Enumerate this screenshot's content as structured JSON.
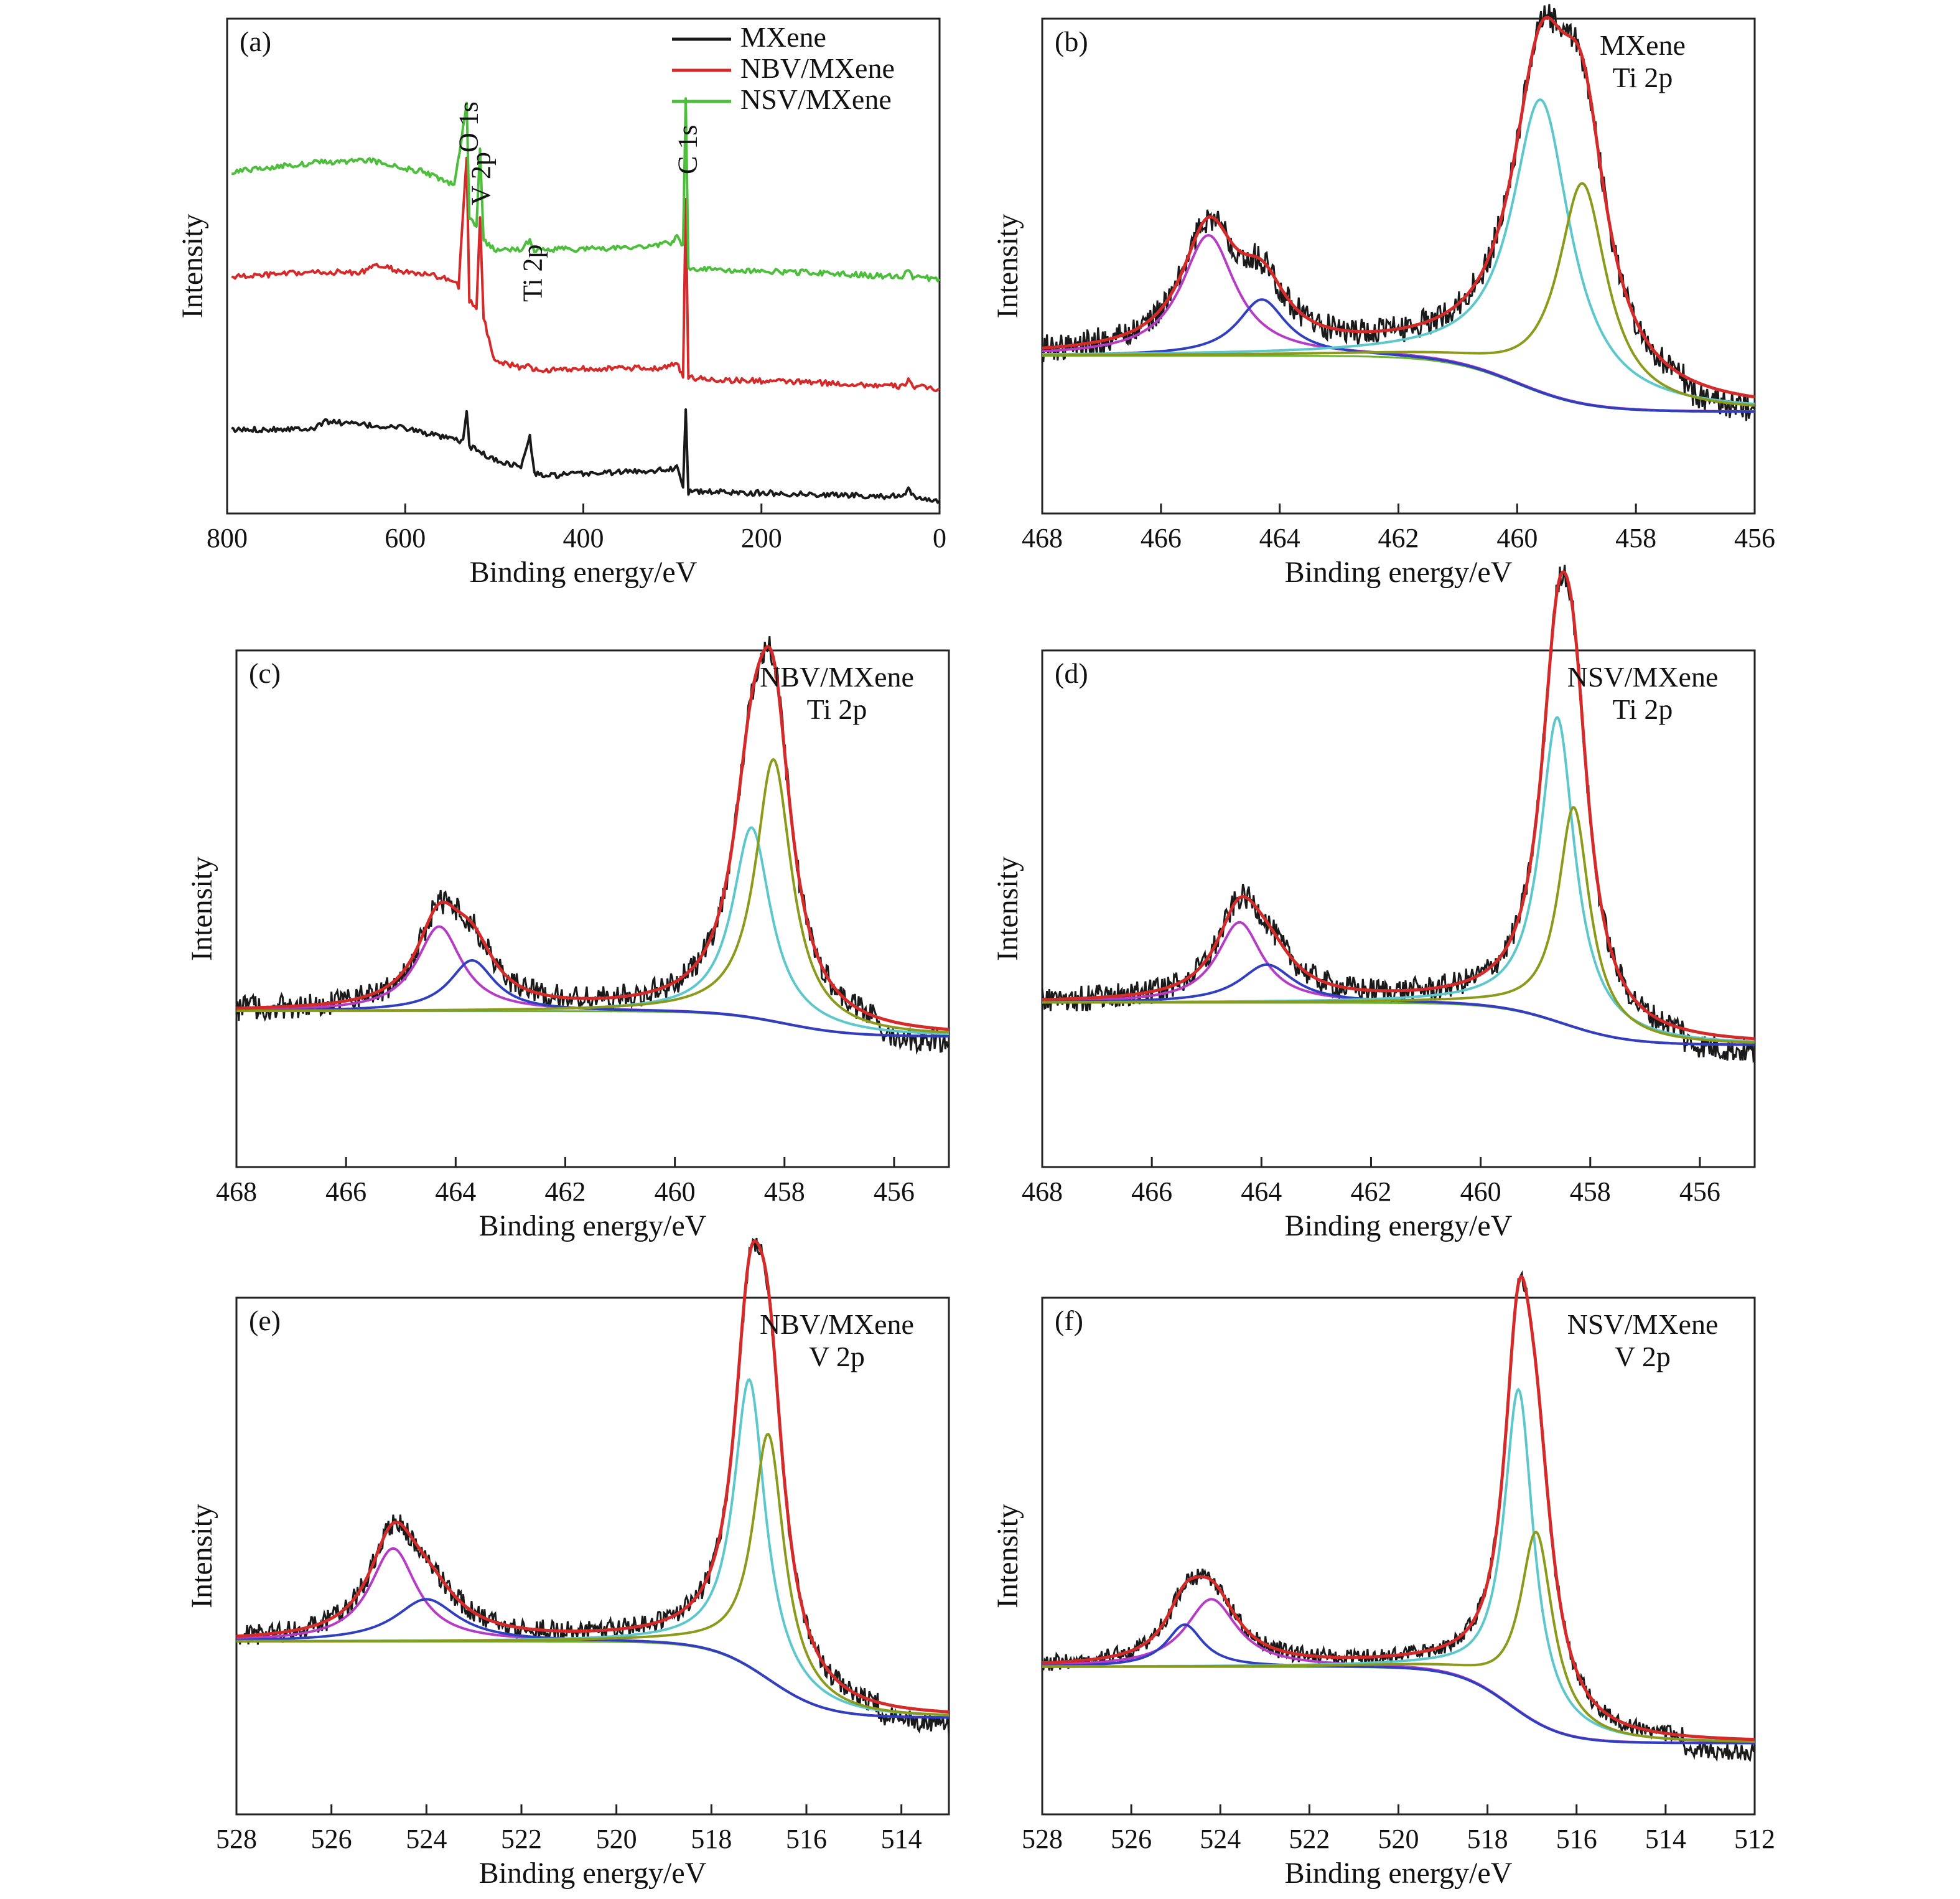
{
  "colors": {
    "mxene": "#1a1a1a",
    "nbv": "#d42a2a",
    "nsv": "#4cbe3c",
    "envelope": "#d42a2a",
    "cyan": "#5cc8cc",
    "olive": "#8b9a1a",
    "blue": "#2f3fc0",
    "magenta": "#b63cc6",
    "baseline": "#6bb230"
  },
  "chart_data": [
    {
      "id": "a",
      "type": "line",
      "panel_label": "(a)",
      "xlabel": "Binding energy/eV",
      "ylabel": "Intensity",
      "xlim": [
        800,
        0
      ],
      "xticks": [
        800,
        600,
        400,
        200,
        0
      ],
      "legend": {
        "placement": "top-right",
        "entries": [
          "MXene",
          "NBV/MXene",
          "NSV/MXene"
        ]
      },
      "peak_labels": [
        {
          "text": "O 1s",
          "x": 530
        },
        {
          "text": "V 2p",
          "x": 516
        },
        {
          "text": "Ti 2p",
          "x": 458
        },
        {
          "text": "C 1s",
          "x": 284
        }
      ],
      "series": [
        {
          "name": "MXene",
          "color_key": "mxene",
          "points": [
            [
              795,
              0.155
            ],
            [
              700,
              0.16
            ],
            [
              690,
              0.175
            ],
            [
              640,
              0.165
            ],
            [
              600,
              0.16
            ],
            [
              560,
              0.14
            ],
            [
              535,
              0.13
            ],
            [
              531,
              0.2
            ],
            [
              528,
              0.12
            ],
            [
              500,
              0.09
            ],
            [
              470,
              0.075
            ],
            [
              460,
              0.14
            ],
            [
              455,
              0.06
            ],
            [
              440,
              0.055
            ],
            [
              400,
              0.06
            ],
            [
              340,
              0.065
            ],
            [
              300,
              0.07
            ],
            [
              295,
              0.08
            ],
            [
              288,
              0.03
            ],
            [
              285,
              0.2
            ],
            [
              282,
              0.02
            ],
            [
              250,
              0.02
            ],
            [
              150,
              0.015
            ],
            [
              40,
              0.01
            ],
            [
              35,
              0.025
            ],
            [
              30,
              0.01
            ],
            [
              0,
              0.0
            ]
          ]
        },
        {
          "name": "NBV/MXene",
          "color_key": "nbv",
          "points": [
            [
              795,
              0.49
            ],
            [
              700,
              0.5
            ],
            [
              650,
              0.5
            ],
            [
              630,
              0.515
            ],
            [
              600,
              0.5
            ],
            [
              560,
              0.49
            ],
            [
              540,
              0.47
            ],
            [
              531,
              0.75
            ],
            [
              528,
              0.44
            ],
            [
              520,
              0.42
            ],
            [
              516,
              0.62
            ],
            [
              512,
              0.4
            ],
            [
              500,
              0.31
            ],
            [
              470,
              0.29
            ],
            [
              460,
              0.3
            ],
            [
              455,
              0.285
            ],
            [
              400,
              0.29
            ],
            [
              320,
              0.29
            ],
            [
              295,
              0.3
            ],
            [
              288,
              0.27
            ],
            [
              285,
              0.66
            ],
            [
              282,
              0.27
            ],
            [
              250,
              0.265
            ],
            [
              150,
              0.26
            ],
            [
              40,
              0.25
            ],
            [
              35,
              0.27
            ],
            [
              30,
              0.25
            ],
            [
              0,
              0.245
            ]
          ]
        },
        {
          "name": "NSV/MXene",
          "color_key": "nsv",
          "points": [
            [
              795,
              0.72
            ],
            [
              700,
              0.74
            ],
            [
              640,
              0.745
            ],
            [
              620,
              0.735
            ],
            [
              580,
              0.72
            ],
            [
              545,
              0.69
            ],
            [
              531,
              0.87
            ],
            [
              528,
              0.62
            ],
            [
              520,
              0.6
            ],
            [
              516,
              0.77
            ],
            [
              512,
              0.57
            ],
            [
              500,
              0.55
            ],
            [
              470,
              0.55
            ],
            [
              460,
              0.57
            ],
            [
              455,
              0.55
            ],
            [
              420,
              0.55
            ],
            [
              340,
              0.555
            ],
            [
              300,
              0.565
            ],
            [
              295,
              0.58
            ],
            [
              288,
              0.56
            ],
            [
              285,
              0.88
            ],
            [
              282,
              0.51
            ],
            [
              250,
              0.505
            ],
            [
              150,
              0.5
            ],
            [
              40,
              0.49
            ],
            [
              35,
              0.51
            ],
            [
              30,
              0.49
            ],
            [
              0,
              0.485
            ]
          ]
        }
      ]
    },
    {
      "id": "b",
      "type": "line",
      "panel_label": "(b)",
      "title_lines": [
        "MXene",
        "Ti 2p"
      ],
      "xlabel": "Binding energy/eV",
      "ylabel": "Intensity",
      "xlim": [
        468,
        456
      ],
      "xticks": [
        468,
        466,
        464,
        462,
        460,
        458,
        456
      ],
      "baseline": {
        "left": 0.3,
        "right": 0.16,
        "step_center": 460.0
      },
      "right_tail": 0.2,
      "noise": 0.035,
      "peaks": [
        {
          "color_key": "magenta",
          "center": 465.2,
          "height": 0.3,
          "width": 0.55
        },
        {
          "color_key": "blue",
          "center": 464.3,
          "height": 0.14,
          "width": 0.5
        },
        {
          "color_key": "cyan",
          "center": 459.6,
          "height": 0.73,
          "width": 0.6
        },
        {
          "color_key": "olive",
          "center": 458.9,
          "height": 0.55,
          "width": 0.5
        }
      ]
    },
    {
      "id": "c",
      "type": "line",
      "panel_label": "(c)",
      "title_lines": [
        "NBV/MXene",
        "Ti 2p"
      ],
      "xlabel": "Binding energy/eV",
      "ylabel": "Intensity",
      "xlim": [
        468,
        455
      ],
      "xticks": [
        468,
        466,
        464,
        462,
        460,
        458,
        456
      ],
      "baseline": {
        "left": 0.28,
        "right": 0.22,
        "step_center": 458.0
      },
      "right_tail": 0.2,
      "noise": 0.03,
      "peaks": [
        {
          "color_key": "magenta",
          "center": 464.3,
          "height": 0.2,
          "width": 0.5
        },
        {
          "color_key": "blue",
          "center": 463.7,
          "height": 0.12,
          "width": 0.5
        },
        {
          "color_key": "cyan",
          "center": 458.6,
          "height": 0.45,
          "width": 0.42
        },
        {
          "color_key": "olive",
          "center": 458.2,
          "height": 0.62,
          "width": 0.4
        }
      ]
    },
    {
      "id": "d",
      "type": "line",
      "panel_label": "(d)",
      "title_lines": [
        "NSV/MXene",
        "Ti 2p"
      ],
      "xlabel": "Binding energy/eV",
      "ylabel": "Intensity",
      "xlim": [
        468,
        455
      ],
      "xticks": [
        468,
        466,
        464,
        462,
        460,
        458,
        456
      ],
      "baseline": {
        "left": 0.3,
        "right": 0.2,
        "step_center": 458.5
      },
      "right_tail": 0.2,
      "noise": 0.03,
      "peaks": [
        {
          "color_key": "magenta",
          "center": 464.4,
          "height": 0.19,
          "width": 0.5
        },
        {
          "color_key": "blue",
          "center": 463.9,
          "height": 0.09,
          "width": 0.6
        },
        {
          "color_key": "cyan",
          "center": 458.6,
          "height": 0.72,
          "width": 0.38
        },
        {
          "color_key": "olive",
          "center": 458.3,
          "height": 0.52,
          "width": 0.35
        }
      ]
    },
    {
      "id": "e",
      "type": "line",
      "panel_label": "(e)",
      "title_lines": [
        "NBV/MXene",
        "V 2p"
      ],
      "xlabel": "Binding energy/eV",
      "ylabel": "Intensity",
      "xlim": [
        528,
        513
      ],
      "xticks": [
        528,
        526,
        524,
        522,
        520,
        518,
        516,
        514
      ],
      "baseline": {
        "left": 0.32,
        "right": 0.14,
        "step_center": 516.8
      },
      "right_tail": 0.2,
      "noise": 0.025,
      "peaks": [
        {
          "color_key": "magenta",
          "center": 524.7,
          "height": 0.22,
          "width": 0.6
        },
        {
          "color_key": "blue",
          "center": 524.0,
          "height": 0.1,
          "width": 0.8
        },
        {
          "color_key": "cyan",
          "center": 517.2,
          "height": 0.68,
          "width": 0.4
        },
        {
          "color_key": "olive",
          "center": 516.8,
          "height": 0.58,
          "width": 0.4
        }
      ]
    },
    {
      "id": "f",
      "type": "line",
      "panel_label": "(f)",
      "title_lines": [
        "NSV/MXene",
        "V 2p"
      ],
      "xlabel": "Binding energy/eV",
      "ylabel": "Intensity",
      "xlim": [
        528,
        512
      ],
      "xticks": [
        528,
        526,
        524,
        522,
        520,
        518,
        516,
        514,
        512
      ],
      "baseline": {
        "left": 0.26,
        "right": 0.08,
        "step_center": 517.5
      },
      "right_tail": 0.2,
      "noise": 0.02,
      "peaks": [
        {
          "color_key": "magenta",
          "center": 524.2,
          "height": 0.16,
          "width": 0.7
        },
        {
          "color_key": "blue",
          "center": 524.8,
          "height": 0.1,
          "width": 0.5
        },
        {
          "color_key": "cyan",
          "center": 517.3,
          "height": 0.76,
          "width": 0.4
        },
        {
          "color_key": "olive",
          "center": 516.9,
          "height": 0.45,
          "width": 0.45
        }
      ]
    }
  ]
}
